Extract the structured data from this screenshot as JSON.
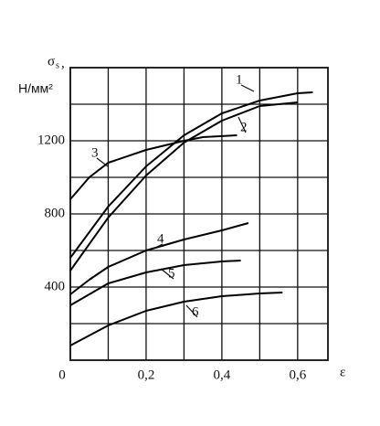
{
  "chart_data": {
    "type": "line",
    "y_label_symbol": "σ",
    "y_label_sub": "s",
    "y_label_comma": ",",
    "y_label_unit": "Н/мм²",
    "x_label": "ε",
    "xlim": [
      0,
      0.68
    ],
    "ylim": [
      0,
      1600
    ],
    "xticks": [
      {
        "value": 0,
        "label": "0"
      },
      {
        "value": 0.2,
        "label": "0,2"
      },
      {
        "value": 0.4,
        "label": "0,4"
      },
      {
        "value": 0.6,
        "label": "0,6"
      }
    ],
    "xminor": [
      0.1,
      0.3,
      0.5
    ],
    "yticks": [
      400,
      800,
      1200
    ],
    "yminor": [
      200,
      600,
      1000,
      1400
    ],
    "grid": true,
    "series": [
      {
        "name": "1",
        "color": "#000000",
        "x": [
          0,
          0.1,
          0.2,
          0.3,
          0.4,
          0.5,
          0.6,
          0.64
        ],
        "values": [
          560,
          840,
          1060,
          1230,
          1350,
          1420,
          1460,
          1465
        ]
      },
      {
        "name": "2",
        "color": "#000000",
        "x": [
          0,
          0.1,
          0.2,
          0.3,
          0.4,
          0.5,
          0.6
        ],
        "values": [
          490,
          780,
          1010,
          1190,
          1310,
          1390,
          1410
        ]
      },
      {
        "name": "3",
        "color": "#000000",
        "x": [
          0,
          0.05,
          0.1,
          0.2,
          0.3,
          0.35,
          0.44
        ],
        "values": [
          880,
          1000,
          1080,
          1150,
          1200,
          1220,
          1230
        ]
      },
      {
        "name": "4",
        "color": "#000000",
        "x": [
          0,
          0.05,
          0.1,
          0.2,
          0.3,
          0.4,
          0.47
        ],
        "values": [
          360,
          440,
          510,
          600,
          660,
          710,
          750
        ]
      },
      {
        "name": "5",
        "color": "#000000",
        "x": [
          0,
          0.1,
          0.2,
          0.3,
          0.4,
          0.45
        ],
        "values": [
          300,
          420,
          480,
          520,
          540,
          545
        ]
      },
      {
        "name": "6",
        "color": "#000000",
        "x": [
          0,
          0.1,
          0.2,
          0.3,
          0.4,
          0.5,
          0.56
        ],
        "values": [
          80,
          190,
          270,
          320,
          350,
          365,
          370
        ]
      }
    ]
  }
}
